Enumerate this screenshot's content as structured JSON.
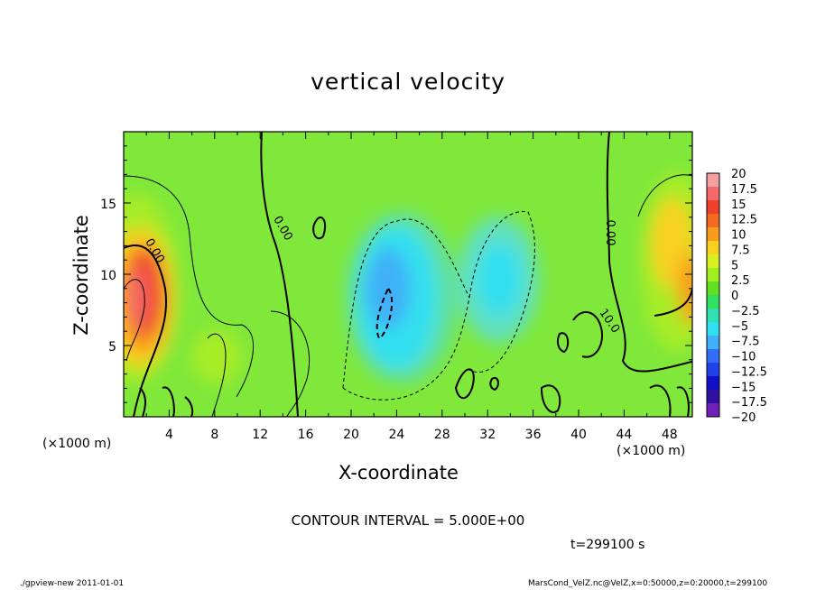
{
  "chart_data": {
    "type": "heatmap",
    "title": "vertical velocity",
    "xlabel": "X-coordinate",
    "ylabel": "Z-coordinate",
    "x_unit": "(×1000 m)",
    "xlim": [
      0,
      50
    ],
    "ylim": [
      0,
      20
    ],
    "x_ticks": [
      "4",
      "8",
      "12",
      "16",
      "20",
      "24",
      "28",
      "32",
      "36",
      "40",
      "44",
      "48"
    ],
    "y_ticks": [
      "5",
      "10",
      "15"
    ],
    "colorbar": {
      "levels": [
        "20",
        "17.5",
        "15",
        "12.5",
        "10",
        "7.5",
        "5",
        "2.5",
        "0",
        "-2.5",
        "-5",
        "-7.5",
        "-10",
        "-12.5",
        "-15",
        "-17.5",
        "-20"
      ],
      "colors": [
        "#f4a0a0",
        "#f46a6a",
        "#f0402a",
        "#f46a1e",
        "#f89c1e",
        "#f8d020",
        "#d8f020",
        "#a0f020",
        "#60e020",
        "#30e060",
        "#30e0b0",
        "#30e0f0",
        "#40b0f8",
        "#3070f8",
        "#2040e8",
        "#1010c8",
        "#3010a0",
        "#7020b8"
      ]
    },
    "contour_labels": [
      "0.00",
      "0.00",
      "0.00",
      "10.0",
      "0.00"
    ],
    "contour_interval": "CONTOUR INTERVAL = 5.000E+00",
    "time": "t=299100 s",
    "grid": false
  },
  "footer": {
    "left": "./gpview-new  2011-01-01",
    "right": "MarsCond_VelZ.nc@VelZ,x=0:50000,z=0:20000,t=299100"
  }
}
